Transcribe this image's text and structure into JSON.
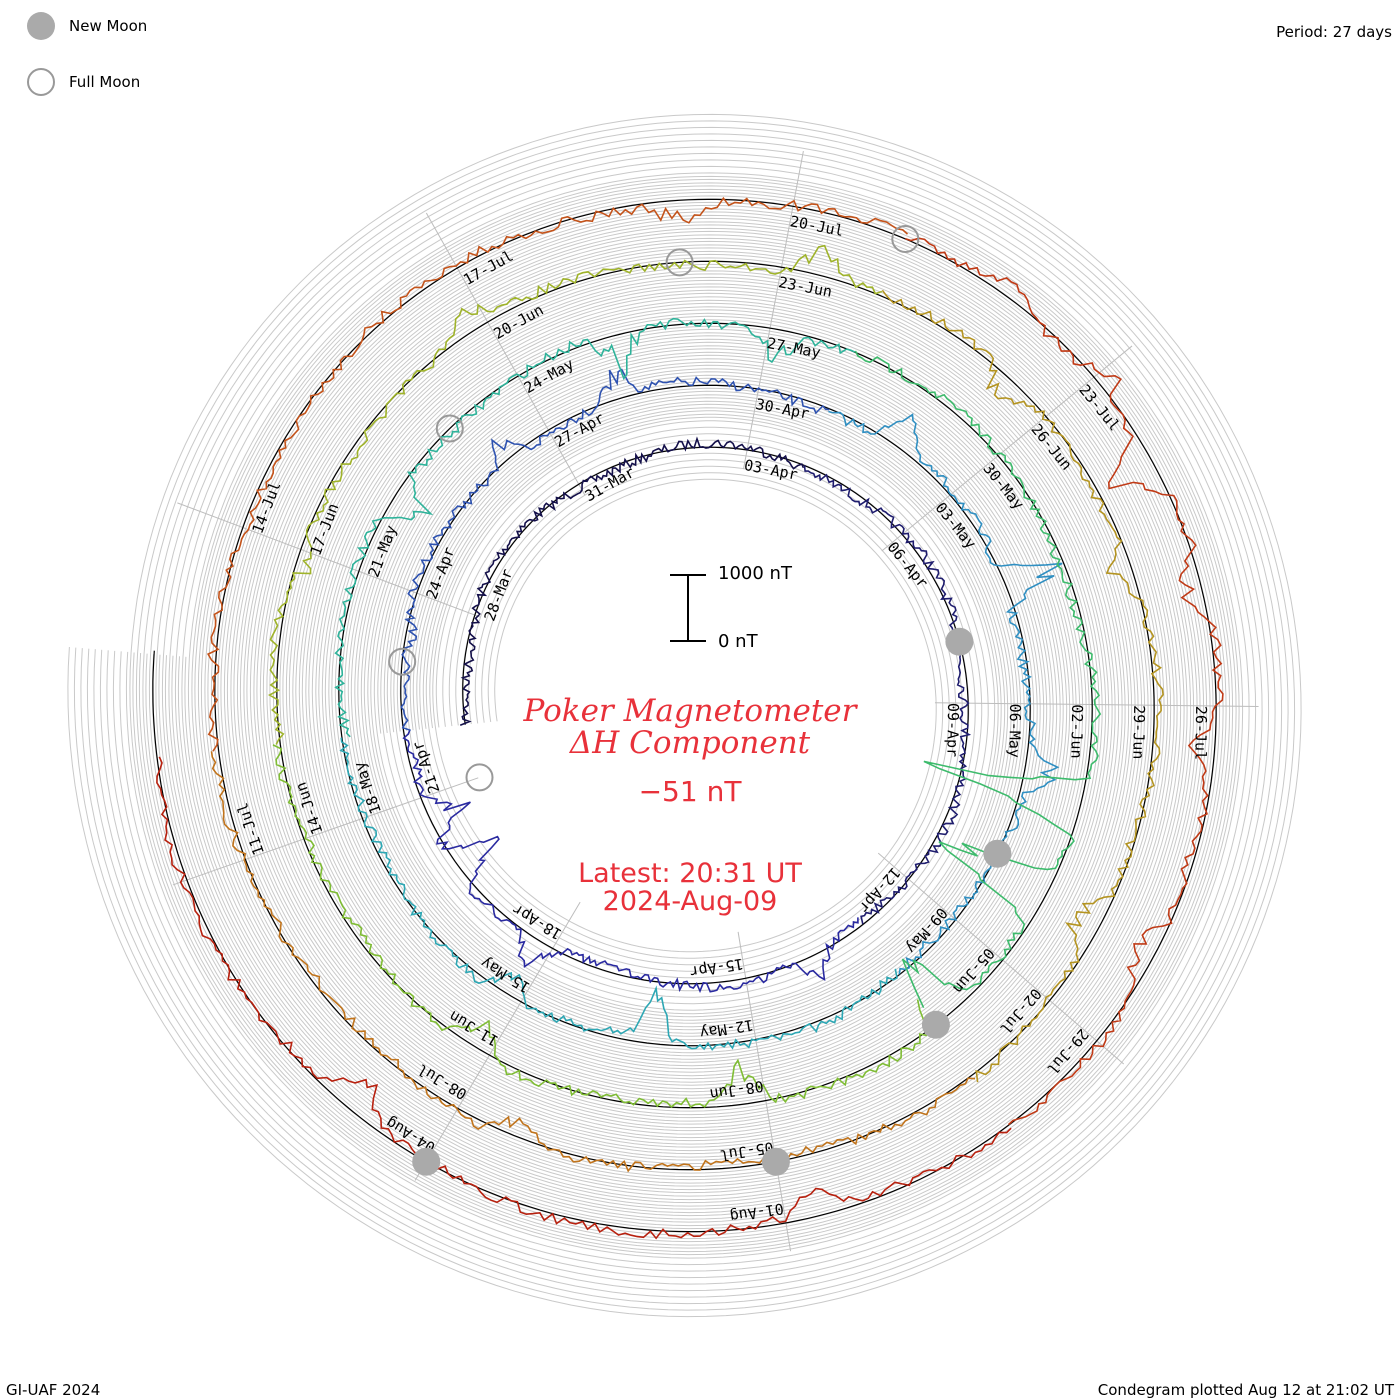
{
  "legend": {
    "new_moon_label": "New Moon",
    "full_moon_label": "Full Moon",
    "new_moon_color": "#aaaaaa",
    "full_moon_color": "#999999"
  },
  "header": {
    "period": "Period: 27 days"
  },
  "footer": {
    "credit": "GI-UAF 2024",
    "plotted": "Condegram plotted Aug 12 at 21:02 UT"
  },
  "title": {
    "line1": "Poker Magnetometer",
    "line2": "ΔH Component",
    "current_value": "−51 nT"
  },
  "latest": {
    "time": "Latest: 20:31 UT",
    "date": "2024-Aug-09"
  },
  "scale_bar": {
    "top_label": "1000 nT",
    "bottom_label": "0 nT",
    "top_value": 1000,
    "bottom_value": 0
  },
  "chart_data": {
    "type": "line",
    "title": "Poker Magnetometer ΔH Component",
    "subtitle": "Period: 27 days",
    "units": "nT",
    "period_days": 27,
    "start_date": "2024-03-26",
    "end_date": "2024-08-09",
    "series": [
      {
        "cycle": 1,
        "color": "#14104a",
        "date_labels": [
          "28-Mar",
          "31-Mar",
          "03-Apr",
          "06-Apr",
          "09-Apr",
          "12-Apr",
          "15-Apr",
          "18-Apr",
          "21-Apr"
        ],
        "spikes": [
          [
            0.7,
            -180
          ],
          [
            0.86,
            -210
          ],
          [
            0.92,
            360
          ],
          [
            0.95,
            210
          ]
        ]
      },
      {
        "cycle": 2,
        "color": "#2a2aa0",
        "date_labels": [
          "24-Apr",
          "27-Apr",
          "30-Apr",
          "03-May",
          "06-May",
          "09-May",
          "12-May",
          "15-May",
          "18-May"
        ],
        "spikes": [
          [
            0.05,
            60
          ],
          [
            0.16,
            -170
          ],
          [
            0.225,
            -160
          ],
          [
            0.37,
            -230
          ],
          [
            0.46,
            -350
          ],
          [
            0.55,
            -180
          ],
          [
            0.79,
            270
          ],
          [
            0.86,
            180
          ]
        ]
      },
      {
        "cycle": 3,
        "color": "#2f8fc2",
        "date_labels": [
          "21-May",
          "24-May",
          "27-May",
          "30-May",
          "02-Jun",
          "05-Jun",
          "08-Jun",
          "11-Jun",
          "14-Jun"
        ],
        "spikes": [
          [
            0.11,
            220
          ],
          [
            0.23,
            240
          ],
          [
            0.3,
            200
          ],
          [
            0.56,
            900
          ],
          [
            0.6,
            760
          ],
          [
            0.66,
            420
          ],
          [
            0.75,
            220
          ],
          [
            0.86,
            250
          ]
        ]
      },
      {
        "cycle": 4,
        "color": "#2eb39a",
        "date_labels": [
          "17-Jun",
          "20-Jun",
          "23-Jun",
          "26-Jun",
          "29-Jun",
          "02-Jul",
          "05-Jul",
          "08-Jul",
          "11-Jul"
        ],
        "spikes": [
          [
            0.07,
            120
          ],
          [
            0.18,
            -130
          ],
          [
            0.31,
            -210
          ],
          [
            0.39,
            180
          ],
          [
            0.47,
            150
          ],
          [
            0.6,
            170
          ],
          [
            0.83,
            150
          ]
        ]
      },
      {
        "cycle": 5,
        "color": "#7fbd34",
        "date_labels": [
          "14-Jul",
          "17-Jul",
          "20-Jul",
          "23-Jul",
          "26-Jul",
          "29-Jul",
          "01-Aug",
          "04-Aug"
        ],
        "spikes": [
          [
            0.02,
            60
          ],
          [
            0.26,
            130
          ],
          [
            0.37,
            -110
          ],
          [
            0.41,
            -140
          ],
          [
            0.44,
            280
          ],
          [
            0.48,
            200
          ],
          [
            0.53,
            140
          ],
          [
            0.6,
            170
          ],
          [
            0.73,
            160
          ],
          [
            0.88,
            200
          ]
        ]
      }
    ],
    "new_moon_dates": [
      "2024-04-08",
      "2024-05-08",
      "2024-06-06",
      "2024-07-05",
      "2024-08-04"
    ],
    "full_moon_dates": [
      "2024-03-25",
      "2024-04-23",
      "2024-05-23",
      "2024-06-22",
      "2024-07-21"
    ],
    "scale_bar_nT": 1000,
    "grid": true,
    "legend_position": "top-left"
  }
}
